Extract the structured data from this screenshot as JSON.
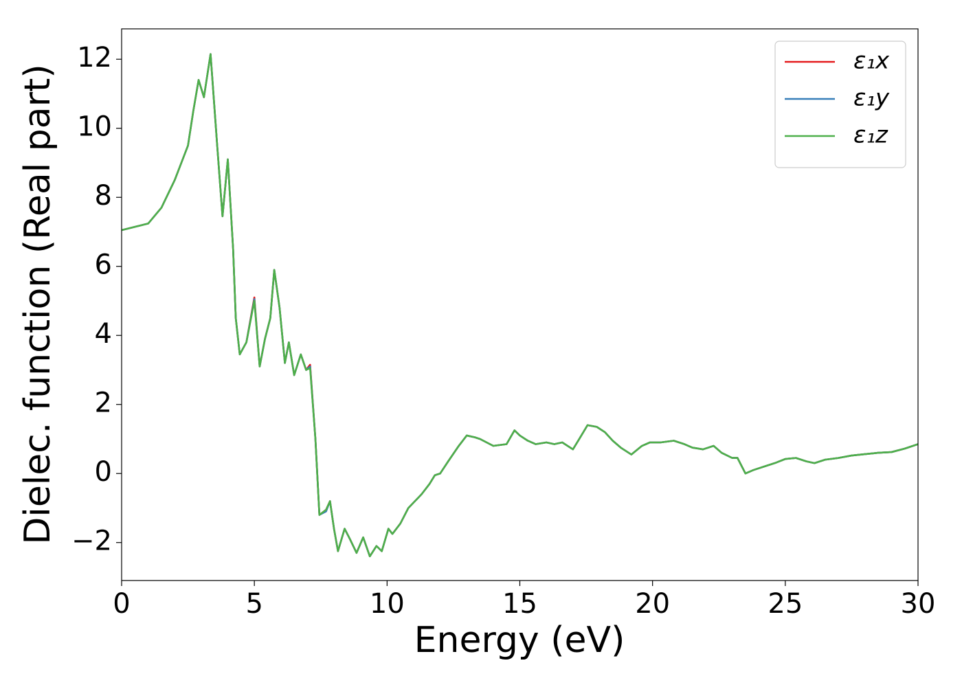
{
  "chart_data": {
    "type": "line",
    "xlabel": "Energy (eV)",
    "ylabel": "Dielec. function (Real part)",
    "xlim": [
      0,
      30
    ],
    "ylim": [
      -3.1,
      12.88
    ],
    "xticks": [
      0,
      5,
      10,
      15,
      20,
      25,
      30
    ],
    "yticks": [
      {
        "value": -2,
        "label": "−2"
      },
      0,
      2,
      4,
      6,
      8,
      10,
      12
    ],
    "grid": false,
    "legend": "upper right",
    "x": [
      0,
      1,
      1.5,
      2,
      2.3,
      2.5,
      2.7,
      2.9,
      3.1,
      3.35,
      3.6,
      3.8,
      4.0,
      4.2,
      4.3,
      4.45,
      4.7,
      5.0,
      5.2,
      5.4,
      5.6,
      5.75,
      5.95,
      6.15,
      6.3,
      6.5,
      6.75,
      6.95,
      7.1,
      7.3,
      7.45,
      7.7,
      7.85,
      8.0,
      8.15,
      8.4,
      8.6,
      8.85,
      9.1,
      9.35,
      9.6,
      9.8,
      10.05,
      10.2,
      10.5,
      10.8,
      11.3,
      11.6,
      11.8,
      12.0,
      12.3,
      12.7,
      13.0,
      13.3,
      13.5,
      14.0,
      14.5,
      14.8,
      15.0,
      15.3,
      15.6,
      16.0,
      16.3,
      16.6,
      17.0,
      17.2,
      17.55,
      17.9,
      18.2,
      18.5,
      18.8,
      19.2,
      19.6,
      19.9,
      20.3,
      20.8,
      21.2,
      21.5,
      21.9,
      22.3,
      22.6,
      23.0,
      23.2,
      23.5,
      23.8,
      24.2,
      24.6,
      25.0,
      25.4,
      25.8,
      26.1,
      26.5,
      27.0,
      27.5,
      28.0,
      28.5,
      29.0,
      29.5,
      30.0
    ],
    "series": [
      {
        "name": "ε₁x",
        "color": "#e41a1c",
        "values": [
          7.05,
          7.24,
          7.7,
          8.5,
          9.1,
          9.5,
          10.5,
          11.4,
          10.9,
          12.15,
          9.5,
          7.45,
          9.1,
          6.5,
          4.5,
          3.45,
          3.8,
          5.1,
          3.1,
          3.9,
          4.5,
          5.9,
          4.8,
          3.2,
          3.8,
          2.85,
          3.45,
          3.0,
          3.15,
          1.0,
          -1.2,
          -1.05,
          -0.8,
          -1.6,
          -2.25,
          -1.6,
          -1.9,
          -2.3,
          -1.85,
          -2.4,
          -2.1,
          -2.25,
          -1.6,
          -1.75,
          -1.45,
          -1.0,
          -0.6,
          -0.3,
          -0.05,
          0.0,
          0.35,
          0.8,
          1.1,
          1.05,
          1.0,
          0.8,
          0.85,
          1.25,
          1.1,
          0.95,
          0.85,
          0.9,
          0.85,
          0.9,
          0.7,
          0.95,
          1.4,
          1.35,
          1.2,
          0.95,
          0.75,
          0.55,
          0.8,
          0.9,
          0.9,
          0.95,
          0.85,
          0.75,
          0.7,
          0.8,
          0.6,
          0.45,
          0.45,
          0.0,
          0.1,
          0.2,
          0.3,
          0.42,
          0.45,
          0.35,
          0.3,
          0.4,
          0.45,
          0.52,
          0.56,
          0.6,
          0.62,
          0.72,
          0.85
        ]
      },
      {
        "name": "ε₁y",
        "color": "#377eb8",
        "values": [
          7.05,
          7.24,
          7.7,
          8.5,
          9.1,
          9.5,
          10.5,
          11.4,
          10.9,
          12.15,
          9.5,
          7.45,
          9.1,
          6.5,
          4.5,
          3.45,
          3.8,
          5.05,
          3.1,
          3.9,
          4.5,
          5.9,
          4.8,
          3.2,
          3.8,
          2.85,
          3.45,
          3.0,
          3.1,
          1.0,
          -1.2,
          -1.1,
          -0.8,
          -1.6,
          -2.25,
          -1.6,
          -1.9,
          -2.3,
          -1.85,
          -2.4,
          -2.1,
          -2.25,
          -1.6,
          -1.75,
          -1.45,
          -1.0,
          -0.6,
          -0.3,
          -0.05,
          0.0,
          0.35,
          0.8,
          1.1,
          1.05,
          1.0,
          0.8,
          0.85,
          1.25,
          1.1,
          0.95,
          0.85,
          0.9,
          0.85,
          0.9,
          0.7,
          0.95,
          1.4,
          1.35,
          1.2,
          0.95,
          0.75,
          0.55,
          0.8,
          0.9,
          0.9,
          0.95,
          0.85,
          0.75,
          0.7,
          0.8,
          0.6,
          0.45,
          0.45,
          0.0,
          0.1,
          0.2,
          0.3,
          0.42,
          0.45,
          0.35,
          0.3,
          0.4,
          0.45,
          0.52,
          0.56,
          0.6,
          0.62,
          0.72,
          0.85
        ]
      },
      {
        "name": "ε₁z",
        "color": "#4daf4a",
        "values": [
          7.05,
          7.24,
          7.7,
          8.5,
          9.1,
          9.5,
          10.5,
          11.4,
          10.9,
          12.15,
          9.5,
          7.45,
          9.1,
          6.5,
          4.5,
          3.45,
          3.8,
          5.0,
          3.1,
          3.9,
          4.5,
          5.9,
          4.8,
          3.2,
          3.8,
          2.85,
          3.45,
          3.0,
          3.05,
          1.0,
          -1.2,
          -1.05,
          -0.8,
          -1.6,
          -2.25,
          -1.6,
          -1.9,
          -2.3,
          -1.85,
          -2.4,
          -2.1,
          -2.25,
          -1.6,
          -1.75,
          -1.45,
          -1.0,
          -0.6,
          -0.3,
          -0.05,
          0.0,
          0.35,
          0.8,
          1.1,
          1.05,
          1.0,
          0.8,
          0.85,
          1.25,
          1.1,
          0.95,
          0.85,
          0.9,
          0.85,
          0.9,
          0.7,
          0.95,
          1.4,
          1.35,
          1.2,
          0.95,
          0.75,
          0.55,
          0.8,
          0.9,
          0.9,
          0.95,
          0.85,
          0.75,
          0.7,
          0.8,
          0.6,
          0.45,
          0.45,
          0.0,
          0.1,
          0.2,
          0.3,
          0.42,
          0.45,
          0.35,
          0.3,
          0.4,
          0.45,
          0.52,
          0.56,
          0.6,
          0.62,
          0.72,
          0.85
        ]
      }
    ]
  }
}
